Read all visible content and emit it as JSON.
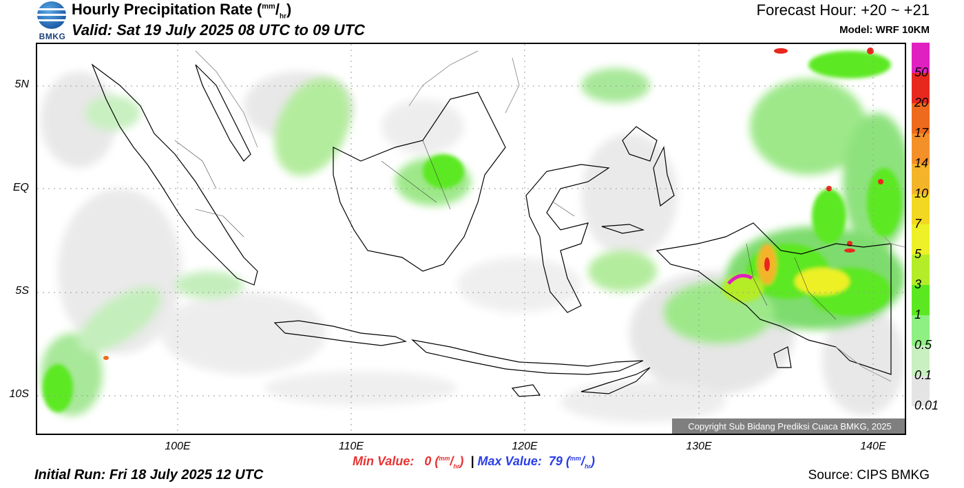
{
  "header": {
    "logo_text": "BMKG",
    "title": "Hourly Precipitation Rate (",
    "unit_num": "mm",
    "unit_den": "hr",
    "title_close": ")",
    "valid": "Valid: Sat 19 July 2025 08 UTC to 09 UTC",
    "forecast_hour": "Forecast Hour: +20 ~ +21",
    "model": "Model: WRF 10KM"
  },
  "map": {
    "lat_labels": [
      "5N",
      "EQ",
      "5S",
      "10S"
    ],
    "lon_labels": [
      "100E",
      "110E",
      "120E",
      "130E",
      "140E"
    ],
    "copyright": "Copyright Sub Bidang Prediksi Cuaca BMKG, 2025"
  },
  "legend": {
    "labels": [
      "50",
      "20",
      "17",
      "14",
      "10",
      "7",
      "5",
      "3",
      "1",
      "0.5",
      "0.1",
      "0.01"
    ],
    "colors": [
      "#e020c0",
      "#e8281e",
      "#ee6a1c",
      "#f49028",
      "#f4b42a",
      "#f2d820",
      "#eef028",
      "#b4ec28",
      "#5ce820",
      "#8ef082",
      "#c8f0c0",
      "#e4e4e4"
    ]
  },
  "footer": {
    "min_label": "Min Value:",
    "min_value": "0",
    "separator": "|",
    "max_label": "Max Value:",
    "max_value": "79",
    "unit_num": "mm",
    "unit_den": "hr",
    "initial_run": "Initial Run: Fri 18 July 2025 12 UTC",
    "source": "Source: CIPS BMKG"
  }
}
